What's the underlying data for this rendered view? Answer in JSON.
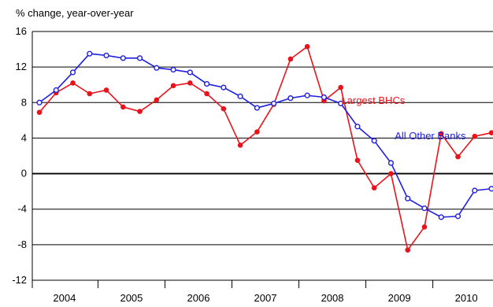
{
  "chart_data": {
    "type": "line",
    "ylabel": "% change, year-over-year",
    "ylim": [
      -12,
      16
    ],
    "yticks": [
      16,
      12,
      8,
      4,
      0,
      -4,
      -8,
      -12
    ],
    "year_labels": [
      "2004",
      "2005",
      "2006",
      "2007",
      "2008",
      "2009",
      "2010"
    ],
    "x_start_year": 2004,
    "quarters_per_year": 4,
    "series": [
      {
        "name": "Largest BHCs",
        "color": "#e8141c",
        "marker": "filled-circle",
        "values": [
          6.9,
          9.1,
          10.2,
          9.0,
          9.4,
          7.5,
          7.0,
          8.3,
          9.9,
          10.2,
          9.0,
          7.3,
          3.2,
          4.7,
          7.8,
          12.9,
          14.3,
          8.2,
          9.7,
          1.5,
          -1.6,
          0.0,
          -8.6,
          -6.0,
          4.5,
          1.9,
          4.2,
          4.6
        ]
      },
      {
        "name": "All Other Banks",
        "color": "#1f1fe0",
        "marker": "open-circle",
        "values": [
          8.0,
          9.4,
          11.4,
          13.5,
          13.3,
          13.0,
          13.0,
          11.9,
          11.7,
          11.4,
          10.1,
          9.7,
          8.7,
          7.4,
          7.9,
          8.5,
          8.8,
          8.6,
          7.9,
          5.3,
          3.7,
          1.2,
          -2.8,
          -3.9,
          -4.9,
          -4.8,
          -1.9,
          -1.7
        ]
      }
    ],
    "annotations": [
      {
        "text": "Largest BHCs",
        "series": 0
      },
      {
        "text": "All Other Banks",
        "series": 1
      }
    ],
    "grid": true
  }
}
